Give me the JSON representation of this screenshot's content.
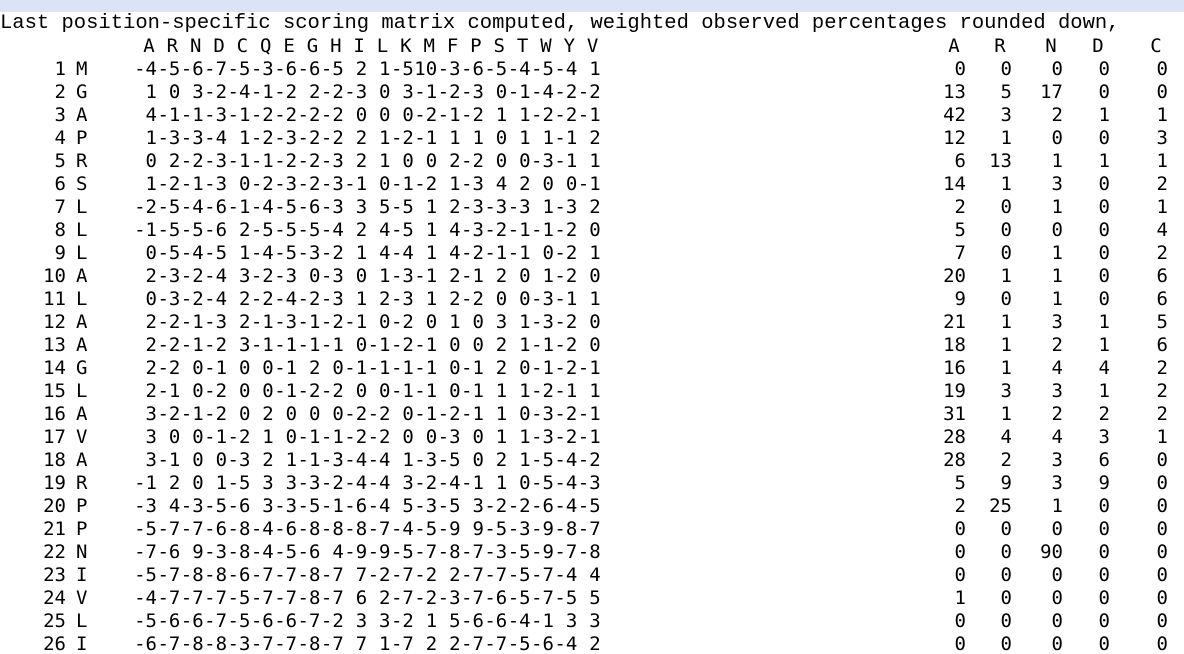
{
  "title": "Last position-specific scoring matrix computed, weighted observed percentages rounded down,",
  "header": {
    "score_letters": [
      "A",
      "R",
      "N",
      "D",
      "C",
      "Q",
      "E",
      "G",
      "H",
      "I",
      "L",
      "K",
      "M",
      "F",
      "P",
      "S",
      "T",
      "W",
      "Y",
      "V"
    ],
    "pct_letters": [
      "A",
      "R",
      "N",
      "D",
      "C"
    ]
  },
  "rows": [
    {
      "pos": "1",
      "aa": "M",
      "scores": [
        "-4",
        "-5",
        "-6",
        "-7",
        "-5",
        "-3",
        "-6",
        "-6",
        "-5",
        "2",
        "1",
        "-5",
        "10",
        "-3",
        "-6",
        "-5",
        "-4",
        "-5",
        "-4",
        "1"
      ],
      "pct": [
        "0",
        "0",
        "0",
        "0",
        "0"
      ]
    },
    {
      "pos": "2",
      "aa": "G",
      "scores": [
        "1",
        "0",
        "3",
        "-2",
        "-4",
        "-1",
        "-2",
        "2",
        "-2",
        "-3",
        "0",
        "3",
        "-1",
        "-2",
        "-3",
        "0",
        "-1",
        "-4",
        "-2",
        "-2"
      ],
      "pct": [
        "13",
        "5",
        "17",
        "0",
        "0"
      ]
    },
    {
      "pos": "3",
      "aa": "A",
      "scores": [
        "4",
        "-1",
        "-1",
        "-3",
        "-1",
        "-2",
        "-2",
        "-2",
        "-2",
        "0",
        "0",
        "0",
        "-2",
        "-1",
        "-2",
        "1",
        "1",
        "-2",
        "-2",
        "-1"
      ],
      "pct": [
        "42",
        "3",
        "2",
        "1",
        "1"
      ]
    },
    {
      "pos": "4",
      "aa": "P",
      "scores": [
        "1",
        "-3",
        "-3",
        "-4",
        "1",
        "-2",
        "-3",
        "-2",
        "-2",
        "2",
        "1",
        "-2",
        "-1",
        "1",
        "1",
        "0",
        "1",
        "1",
        "-1",
        "2"
      ],
      "pct": [
        "12",
        "1",
        "0",
        "0",
        "3"
      ]
    },
    {
      "pos": "5",
      "aa": "R",
      "scores": [
        "0",
        "2",
        "-2",
        "-3",
        "-1",
        "-1",
        "-2",
        "-2",
        "-3",
        "2",
        "1",
        "0",
        "0",
        "2",
        "-2",
        "0",
        "0",
        "-3",
        "-1",
        "1"
      ],
      "pct": [
        "6",
        "13",
        "1",
        "1",
        "1"
      ]
    },
    {
      "pos": "6",
      "aa": "S",
      "scores": [
        "1",
        "-2",
        "-1",
        "-3",
        "0",
        "-2",
        "-3",
        "-2",
        "-3",
        "-1",
        "0",
        "-1",
        "-2",
        "1",
        "-3",
        "4",
        "2",
        "0",
        "0",
        "-1"
      ],
      "pct": [
        "14",
        "1",
        "3",
        "0",
        "2"
      ]
    },
    {
      "pos": "7",
      "aa": "L",
      "scores": [
        "-2",
        "-5",
        "-4",
        "-6",
        "-1",
        "-4",
        "-5",
        "-6",
        "-3",
        "3",
        "5",
        "-5",
        "1",
        "2",
        "-3",
        "-3",
        "-3",
        "1",
        "-3",
        "2"
      ],
      "pct": [
        "2",
        "0",
        "1",
        "0",
        "1"
      ]
    },
    {
      "pos": "8",
      "aa": "L",
      "scores": [
        "-1",
        "-5",
        "-5",
        "-6",
        "2",
        "-5",
        "-5",
        "-5",
        "-4",
        "2",
        "4",
        "-5",
        "1",
        "4",
        "-3",
        "-2",
        "-1",
        "-1",
        "-2",
        "0"
      ],
      "pct": [
        "5",
        "0",
        "0",
        "0",
        "4"
      ]
    },
    {
      "pos": "9",
      "aa": "L",
      "scores": [
        "0",
        "-5",
        "-4",
        "-5",
        "1",
        "-4",
        "-5",
        "-3",
        "-2",
        "1",
        "4",
        "-4",
        "1",
        "4",
        "-2",
        "-1",
        "-1",
        "0",
        "-2",
        "1"
      ],
      "pct": [
        "7",
        "0",
        "1",
        "0",
        "2"
      ]
    },
    {
      "pos": "10",
      "aa": "A",
      "scores": [
        "2",
        "-3",
        "-2",
        "-4",
        "3",
        "-2",
        "-3",
        "0",
        "-3",
        "0",
        "1",
        "-3",
        "-1",
        "2",
        "-1",
        "2",
        "0",
        "1",
        "-2",
        "0"
      ],
      "pct": [
        "20",
        "1",
        "1",
        "0",
        "6"
      ]
    },
    {
      "pos": "11",
      "aa": "L",
      "scores": [
        "0",
        "-3",
        "-2",
        "-4",
        "2",
        "-2",
        "-4",
        "-2",
        "-3",
        "1",
        "2",
        "-3",
        "1",
        "2",
        "-2",
        "0",
        "0",
        "-3",
        "-1",
        "1"
      ],
      "pct": [
        "9",
        "0",
        "1",
        "0",
        "6"
      ]
    },
    {
      "pos": "12",
      "aa": "A",
      "scores": [
        "2",
        "-2",
        "-1",
        "-3",
        "2",
        "-1",
        "-3",
        "-1",
        "-2",
        "-1",
        "0",
        "-2",
        "0",
        "1",
        "0",
        "3",
        "1",
        "-3",
        "-2",
        "0"
      ],
      "pct": [
        "21",
        "1",
        "3",
        "1",
        "5"
      ]
    },
    {
      "pos": "13",
      "aa": "A",
      "scores": [
        "2",
        "-2",
        "-1",
        "-2",
        "3",
        "-1",
        "-1",
        "-1",
        "-1",
        "0",
        "-1",
        "-2",
        "-1",
        "0",
        "0",
        "2",
        "1",
        "-1",
        "-2",
        "0"
      ],
      "pct": [
        "18",
        "1",
        "2",
        "1",
        "6"
      ]
    },
    {
      "pos": "14",
      "aa": "G",
      "scores": [
        "2",
        "-2",
        "0",
        "-1",
        "0",
        "0",
        "-1",
        "2",
        "0",
        "-1",
        "-1",
        "-1",
        "-1",
        "0",
        "-1",
        "2",
        "0",
        "-1",
        "-2",
        "-1"
      ],
      "pct": [
        "16",
        "1",
        "4",
        "4",
        "2"
      ]
    },
    {
      "pos": "15",
      "aa": "L",
      "scores": [
        "2",
        "-1",
        "0",
        "-2",
        "0",
        "0",
        "-1",
        "-2",
        "-2",
        "0",
        "0",
        "-1",
        "-1",
        "0",
        "-1",
        "1",
        "1",
        "-2",
        "-1",
        "1"
      ],
      "pct": [
        "19",
        "3",
        "3",
        "1",
        "2"
      ]
    },
    {
      "pos": "16",
      "aa": "A",
      "scores": [
        "3",
        "-2",
        "-1",
        "-2",
        "0",
        "2",
        "0",
        "0",
        "0",
        "-2",
        "-2",
        "0",
        "-1",
        "-2",
        "-1",
        "1",
        "0",
        "-3",
        "-2",
        "-1"
      ],
      "pct": [
        "31",
        "1",
        "2",
        "2",
        "2"
      ]
    },
    {
      "pos": "17",
      "aa": "V",
      "scores": [
        "3",
        "0",
        "0",
        "-1",
        "-2",
        "1",
        "0",
        "-1",
        "-1",
        "-2",
        "-2",
        "0",
        "0",
        "-3",
        "0",
        "1",
        "1",
        "-3",
        "-2",
        "-1"
      ],
      "pct": [
        "28",
        "4",
        "4",
        "3",
        "1"
      ]
    },
    {
      "pos": "18",
      "aa": "A",
      "scores": [
        "3",
        "-1",
        "0",
        "0",
        "-3",
        "2",
        "1",
        "-1",
        "-3",
        "-4",
        "-4",
        "1",
        "-3",
        "-5",
        "0",
        "2",
        "1",
        "-5",
        "-4",
        "-2"
      ],
      "pct": [
        "28",
        "2",
        "3",
        "6",
        "0"
      ]
    },
    {
      "pos": "19",
      "aa": "R",
      "scores": [
        "-1",
        "2",
        "0",
        "1",
        "-5",
        "3",
        "3",
        "-3",
        "-2",
        "-4",
        "-4",
        "3",
        "-2",
        "-4",
        "-1",
        "1",
        "0",
        "-5",
        "-4",
        "-3"
      ],
      "pct": [
        "5",
        "9",
        "3",
        "9",
        "0"
      ]
    },
    {
      "pos": "20",
      "aa": "P",
      "scores": [
        "-3",
        "4",
        "-3",
        "-5",
        "-6",
        "3",
        "-3",
        "-5",
        "-1",
        "-6",
        "-4",
        "5",
        "-3",
        "-5",
        "3",
        "-2",
        "-2",
        "-6",
        "-4",
        "-5"
      ],
      "pct": [
        "2",
        "25",
        "1",
        "0",
        "0"
      ]
    },
    {
      "pos": "21",
      "aa": "P",
      "scores": [
        "-5",
        "-7",
        "-7",
        "-6",
        "-8",
        "-4",
        "-6",
        "-8",
        "-8",
        "-8",
        "-7",
        "-4",
        "-5",
        "-9",
        "9",
        "-5",
        "-3",
        "-9",
        "-8",
        "-7"
      ],
      "pct": [
        "0",
        "0",
        "0",
        "0",
        "0"
      ]
    },
    {
      "pos": "22",
      "aa": "N",
      "scores": [
        "-7",
        "-6",
        "9",
        "-3",
        "-8",
        "-4",
        "-5",
        "-6",
        "4",
        "-9",
        "-9",
        "-5",
        "-7",
        "-8",
        "-7",
        "-3",
        "-5",
        "-9",
        "-7",
        "-8"
      ],
      "pct": [
        "0",
        "0",
        "90",
        "0",
        "0"
      ]
    },
    {
      "pos": "23",
      "aa": "I",
      "scores": [
        "-5",
        "-7",
        "-8",
        "-8",
        "-6",
        "-7",
        "-7",
        "-8",
        "-7",
        "7",
        "-2",
        "-7",
        "-2",
        "2",
        "-7",
        "-7",
        "-5",
        "-7",
        "-4",
        "4"
      ],
      "pct": [
        "0",
        "0",
        "0",
        "0",
        "0"
      ]
    },
    {
      "pos": "24",
      "aa": "V",
      "scores": [
        "-4",
        "-7",
        "-7",
        "-7",
        "-5",
        "-7",
        "-7",
        "-8",
        "-7",
        "6",
        "2",
        "-7",
        "-2",
        "-3",
        "-7",
        "-6",
        "-5",
        "-7",
        "-5",
        "5"
      ],
      "pct": [
        "1",
        "0",
        "0",
        "0",
        "0"
      ]
    },
    {
      "pos": "25",
      "aa": "L",
      "scores": [
        "-5",
        "-6",
        "-6",
        "-7",
        "-5",
        "-6",
        "-6",
        "-7",
        "-2",
        "3",
        "3",
        "-2",
        "1",
        "5",
        "-6",
        "-6",
        "-4",
        "-1",
        "3",
        "3"
      ],
      "pct": [
        "0",
        "0",
        "0",
        "0",
        "0"
      ]
    },
    {
      "pos": "26",
      "aa": "I",
      "scores": [
        "-6",
        "-7",
        "-8",
        "-8",
        "-3",
        "-7",
        "-7",
        "-8",
        "-7",
        "7",
        "1",
        "-7",
        "2",
        "2",
        "-7",
        "-7",
        "-5",
        "-6",
        "-4",
        "2"
      ],
      "pct": [
        "0",
        "0",
        "0",
        "0",
        "0"
      ]
    }
  ]
}
